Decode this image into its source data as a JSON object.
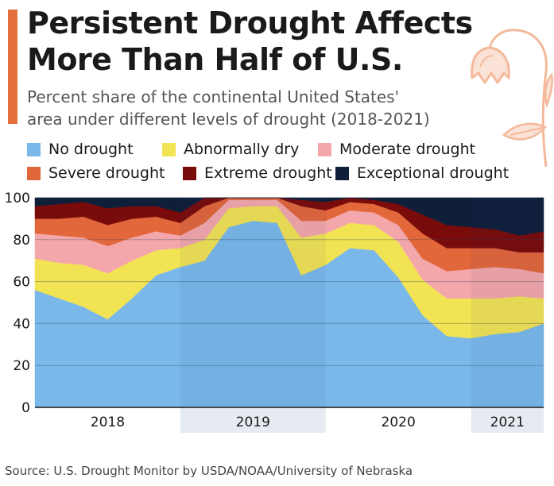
{
  "header": {
    "title_line1": "Persistent Drought Affects",
    "title_line2": "More Than Half of U.S.",
    "subtitle_line1": "Percent share of the continental United States'",
    "subtitle_line2": "area under different levels of drought (2018-2021)"
  },
  "legend": [
    {
      "label": "No drought",
      "color": "#7ab8ea"
    },
    {
      "label": "Abnormally dry",
      "color": "#f2e354"
    },
    {
      "label": "Moderate drought",
      "color": "#f4a7ab"
    },
    {
      "label": "Severe drought",
      "color": "#e2673a"
    },
    {
      "label": "Extreme drought",
      "color": "#7a0b0b"
    },
    {
      "label": "Exceptional drought",
      "color": "#0f1f3a"
    }
  ],
  "footer": {
    "source": "Source: U.S. Drought Monitor by USDA/NOAA/University of Nebraska"
  },
  "decor": {
    "icon": "drooping-flower-icon"
  },
  "chart_data": {
    "type": "area",
    "stacked": true,
    "title": "Persistent Drought Affects More Than Half of U.S.",
    "subtitle": "Percent share of the continental United States' area under different levels of drought (2018-2021)",
    "ylim": [
      0,
      100
    ],
    "yticks": [
      0,
      20,
      40,
      60,
      80,
      100
    ],
    "grid": true,
    "legend_position": "top",
    "xlim": [
      "2018-01",
      "2021-07"
    ],
    "xtick_labels": [
      "2018",
      "2019",
      "2020",
      "2021"
    ],
    "x": [
      "2018-01",
      "2018-03",
      "2018-05",
      "2018-07",
      "2018-09",
      "2018-11",
      "2019-01",
      "2019-03",
      "2019-05",
      "2019-07",
      "2019-09",
      "2019-11",
      "2020-01",
      "2020-03",
      "2020-05",
      "2020-07",
      "2020-09",
      "2020-11",
      "2021-01",
      "2021-03",
      "2021-05",
      "2021-07"
    ],
    "series": [
      {
        "name": "No drought",
        "color": "#7ab8ea",
        "values": [
          56,
          52,
          48,
          42,
          52,
          63,
          67,
          70,
          86,
          89,
          88,
          63,
          68,
          76,
          75,
          62,
          44,
          34,
          33,
          35,
          36,
          40
        ]
      },
      {
        "name": "Abnormally dry",
        "color": "#f2e354",
        "values": [
          15,
          17,
          20,
          22,
          18,
          12,
          9,
          10,
          9,
          7,
          8,
          18,
          15,
          12,
          12,
          17,
          17,
          18,
          19,
          17,
          17,
          12
        ]
      },
      {
        "name": "Moderate drought",
        "color": "#f4a7ab",
        "values": [
          12,
          13,
          13,
          13,
          11,
          9,
          6,
          8,
          4,
          3,
          3,
          8,
          6,
          6,
          6,
          8,
          10,
          13,
          14,
          15,
          13,
          12
        ]
      },
      {
        "name": "Severe drought",
        "color": "#e2673a",
        "values": [
          7,
          8,
          10,
          10,
          9,
          7,
          6,
          8,
          1,
          1,
          1,
          7,
          5,
          4,
          4,
          6,
          12,
          11,
          10,
          9,
          8,
          10
        ]
      },
      {
        "name": "Extreme drought",
        "color": "#7a0b0b",
        "values": [
          6,
          7,
          7,
          8,
          6,
          5,
          5,
          4,
          0,
          0,
          0,
          3,
          4,
          2,
          2,
          4,
          9,
          11,
          10,
          9,
          8,
          10
        ]
      },
      {
        "name": "Exceptional drought",
        "color": "#0f1f3a",
        "values": [
          4,
          3,
          2,
          5,
          4,
          4,
          7,
          0,
          0,
          0,
          0,
          1,
          2,
          0,
          1,
          3,
          8,
          13,
          14,
          15,
          18,
          16
        ]
      }
    ]
  }
}
